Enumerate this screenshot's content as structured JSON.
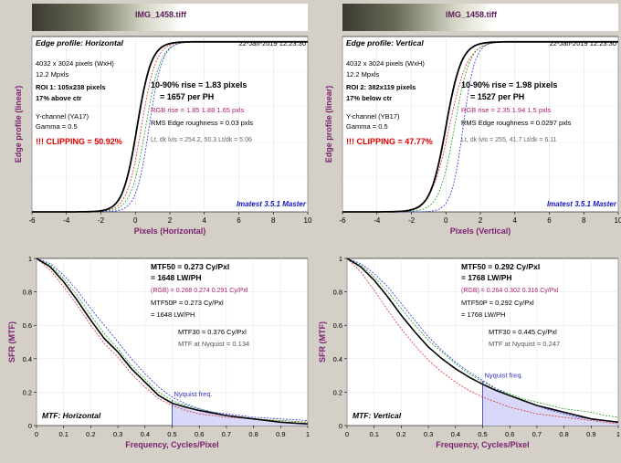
{
  "colors": {
    "background": "#d4d0c8",
    "plot_bg": "#ffffff",
    "curve_main": "#000000",
    "curve_red": "#e03030",
    "curve_green": "#20a020",
    "curve_blue": "#3030e0",
    "axis_label": "#7a1f6e",
    "clipping": "#e00000",
    "imatest": "#1515c0",
    "rgb_text": "#b0206a",
    "nyquist_fill": "#d8d8f8",
    "nyquist_line": "#3030c0"
  },
  "chart_data": [
    {
      "type": "line",
      "file_title": "IMG_1458.tiff",
      "title": "Edge profile: Horizontal",
      "timestamp": "22-Jan-2019 12:23:30",
      "xlabel": "Pixels (Horizontal)",
      "ylabel": "Edge profile (linear)",
      "xlim": [
        -6,
        10
      ],
      "ylim": [
        0,
        1
      ],
      "x_ticks": [
        "-6",
        "-4",
        "-2",
        "0",
        "2",
        "4",
        "6",
        "8",
        "10"
      ],
      "info_left": [
        "4032 x 3024 pixels (WxH)",
        "12.2 Mpxls",
        "ROI 1:  105x238 pixels",
        "17% above ctr",
        "Y-channel  (YA17)",
        "Gamma = 0.5",
        "!!! CLIPPING =  50.92%"
      ],
      "info_main": [
        "10-90% rise = 1.83 pixels",
        "= 1657 per PH"
      ],
      "info_rgb": "RGB rise = 1.85  1.88  1.65 pxls",
      "info_extra": [
        "RMS Edge roughness = 0.03 pxls",
        "Lt, dk lvls = 254.2, 50.3    Lt/dk = 5.06"
      ],
      "brand": "Imatest 3.5.1 Master",
      "edge": {
        "main": {
          "center": 0.1,
          "rise": 1.83
        },
        "red": {
          "center": 0.35,
          "rise": 1.85
        },
        "green": {
          "center": 0.6,
          "rise": 1.88
        },
        "blue": {
          "center": 0.8,
          "rise": 1.65
        }
      }
    },
    {
      "type": "line",
      "file_title": "IMG_1458.tiff",
      "title": "Edge profile: Vertical",
      "timestamp": "22-Jan-2019 12:23:30",
      "xlabel": "Pixels (Vertical)",
      "ylabel": "Edge profile (linear)",
      "xlim": [
        -6,
        10
      ],
      "ylim": [
        0,
        1
      ],
      "x_ticks": [
        "-6",
        "-4",
        "-2",
        "0",
        "2",
        "4",
        "6",
        "8",
        "10"
      ],
      "info_left": [
        "4032 x 3024 pixels (WxH)",
        "12.2 Mpxls",
        "ROI 2:  382x119 pixels",
        "17% below ctr",
        "Y-channel  (YB17)",
        "Gamma = 0.5",
        "!!! CLIPPING =  47.77%"
      ],
      "info_main": [
        "10-90% rise = 1.98 pixels",
        "= 1527 per PH"
      ],
      "info_rgb": "RGB rise = 2.35  1.94  1.5 pxls",
      "info_extra": [
        "RMS Edge roughness = 0.0297 pxls",
        "Lt, dk lvls = 255, 41.7    Lt/dk = 6.11"
      ],
      "brand": "Imatest 3.5.1 Master",
      "edge": {
        "main": {
          "center": 0.0,
          "rise": 1.98
        },
        "red": {
          "center": 0.2,
          "rise": 2.35
        },
        "green": {
          "center": 0.5,
          "rise": 1.94
        },
        "blue": {
          "center": 1.0,
          "rise": 1.5
        }
      }
    },
    {
      "type": "line",
      "title": "MTF: Horizontal",
      "xlabel": "Frequency, Cycles/Pixel",
      "ylabel": "SFR (MTF)",
      "xlim": [
        0,
        1
      ],
      "ylim": [
        0,
        1
      ],
      "x_ticks": [
        "0",
        "0.1",
        "0.2",
        "0.3",
        "0.4",
        "0.5",
        "0.6",
        "0.7",
        "0.8",
        "0.9",
        "1"
      ],
      "y_ticks": [
        "0",
        "0.2",
        "0.4",
        "0.6",
        "0.8",
        "1"
      ],
      "info": [
        "MTF50 = 0.273 Cy/Pxl",
        "= 1648 LW/PH"
      ],
      "info_rgb": "(RGB) = 0.268  0.274  0.291 Cy/Pxl",
      "info_extra": [
        "MTF50P = 0.273 Cy/Pxl",
        "= 1648 LW/PH"
      ],
      "info_extra2": [
        "MTF30 = 0.376 Cy/Pxl",
        "MTF at Nyquist = 0.134"
      ],
      "nyquist_label": "Nyquist freq.",
      "nyquist": 0.5,
      "series": [
        {
          "x": [
            0,
            0.05,
            0.1,
            0.15,
            0.2,
            0.25,
            0.3,
            0.35,
            0.4,
            0.45,
            0.5,
            0.55,
            0.6,
            0.65,
            0.7,
            0.75,
            0.8,
            0.85,
            0.9,
            0.95,
            1.0
          ],
          "values": [
            1.0,
            0.95,
            0.86,
            0.75,
            0.63,
            0.52,
            0.44,
            0.34,
            0.26,
            0.18,
            0.134,
            0.11,
            0.09,
            0.075,
            0.06,
            0.05,
            0.04,
            0.03,
            0.02,
            0.015,
            0.01
          ]
        },
        {
          "x": [
            0,
            0.05,
            0.1,
            0.15,
            0.2,
            0.25,
            0.3,
            0.35,
            0.4,
            0.45,
            0.5,
            0.55,
            0.6,
            0.65,
            0.7,
            0.75,
            0.8,
            0.85,
            0.9,
            0.95,
            1.0
          ],
          "values": [
            1.0,
            0.93,
            0.83,
            0.72,
            0.6,
            0.49,
            0.41,
            0.31,
            0.23,
            0.16,
            0.12,
            0.09,
            0.07,
            0.06,
            0.05,
            0.045,
            0.04,
            0.035,
            0.03,
            0.025,
            0.02
          ]
        },
        {
          "x": [
            0,
            0.05,
            0.1,
            0.15,
            0.2,
            0.25,
            0.3,
            0.35,
            0.4,
            0.45,
            0.5,
            0.55,
            0.6,
            0.65,
            0.7,
            0.75,
            0.8,
            0.85,
            0.9,
            0.95,
            1.0
          ],
          "values": [
            1.0,
            0.96,
            0.88,
            0.78,
            0.66,
            0.55,
            0.46,
            0.36,
            0.28,
            0.2,
            0.15,
            0.12,
            0.1,
            0.08,
            0.06,
            0.05,
            0.04,
            0.035,
            0.03,
            0.025,
            0.02
          ]
        },
        {
          "x": [
            0,
            0.05,
            0.1,
            0.15,
            0.2,
            0.25,
            0.3,
            0.35,
            0.4,
            0.45,
            0.5,
            0.55,
            0.6,
            0.65,
            0.7,
            0.75,
            0.8,
            0.85,
            0.9,
            0.95,
            1.0
          ],
          "values": [
            1.0,
            0.97,
            0.9,
            0.81,
            0.7,
            0.6,
            0.5,
            0.4,
            0.31,
            0.23,
            0.17,
            0.13,
            0.1,
            0.08,
            0.07,
            0.06,
            0.05,
            0.045,
            0.04,
            0.035,
            0.03
          ]
        }
      ]
    },
    {
      "type": "line",
      "title": "MTF: Vertical",
      "xlabel": "Frequency, Cycles/Pixel",
      "ylabel": "SFR (MTF)",
      "xlim": [
        0,
        1
      ],
      "ylim": [
        0,
        1
      ],
      "x_ticks": [
        "0",
        "0.1",
        "0.2",
        "0.3",
        "0.4",
        "0.5",
        "0.6",
        "0.7",
        "0.8",
        "0.9",
        "1"
      ],
      "y_ticks": [
        "0",
        "0.2",
        "0.4",
        "0.6",
        "0.8",
        "1"
      ],
      "info": [
        "MTF50 = 0.292 Cy/Pxl",
        "= 1768 LW/PH"
      ],
      "info_rgb": "(RGB) = 0.264  0.302  0.316 Cy/Pxl",
      "info_extra": [
        "MTF50P = 0.292 Cy/Pxl",
        "= 1768 LW/PH"
      ],
      "info_extra2": [
        "MTF30 = 0.445 Cy/Pxl",
        "MTF at Nyquist = 0.247"
      ],
      "nyquist_label": "Nyquist freq.",
      "nyquist": 0.5,
      "series": [
        {
          "x": [
            0,
            0.05,
            0.1,
            0.15,
            0.2,
            0.25,
            0.3,
            0.35,
            0.4,
            0.45,
            0.5,
            0.55,
            0.6,
            0.65,
            0.7,
            0.75,
            0.8,
            0.85,
            0.9,
            0.95,
            1.0
          ],
          "values": [
            1.0,
            0.95,
            0.87,
            0.77,
            0.66,
            0.56,
            0.47,
            0.4,
            0.34,
            0.29,
            0.247,
            0.21,
            0.18,
            0.15,
            0.12,
            0.1,
            0.08,
            0.06,
            0.04,
            0.03,
            0.02
          ]
        },
        {
          "x": [
            0,
            0.05,
            0.1,
            0.15,
            0.2,
            0.25,
            0.3,
            0.35,
            0.4,
            0.45,
            0.5,
            0.55,
            0.6,
            0.65,
            0.7,
            0.75,
            0.8,
            0.85,
            0.9,
            0.95,
            1.0
          ],
          "values": [
            1.0,
            0.92,
            0.81,
            0.69,
            0.58,
            0.48,
            0.39,
            0.32,
            0.26,
            0.21,
            0.17,
            0.14,
            0.11,
            0.09,
            0.07,
            0.06,
            0.05,
            0.04,
            0.03,
            0.02,
            0.01
          ]
        },
        {
          "x": [
            0,
            0.05,
            0.1,
            0.15,
            0.2,
            0.25,
            0.3,
            0.35,
            0.4,
            0.45,
            0.5,
            0.55,
            0.6,
            0.65,
            0.7,
            0.75,
            0.8,
            0.85,
            0.9,
            0.95,
            1.0
          ],
          "values": [
            1.0,
            0.96,
            0.89,
            0.8,
            0.7,
            0.6,
            0.51,
            0.44,
            0.37,
            0.31,
            0.26,
            0.22,
            0.19,
            0.16,
            0.14,
            0.12,
            0.1,
            0.09,
            0.08,
            0.06,
            0.05
          ]
        },
        {
          "x": [
            0,
            0.05,
            0.1,
            0.15,
            0.2,
            0.25,
            0.3,
            0.35,
            0.4,
            0.45,
            0.5,
            0.55,
            0.6,
            0.65,
            0.7,
            0.75,
            0.8,
            0.85,
            0.9,
            0.95,
            1.0
          ],
          "values": [
            1.0,
            0.97,
            0.91,
            0.83,
            0.73,
            0.63,
            0.53,
            0.45,
            0.38,
            0.32,
            0.27,
            0.22,
            0.18,
            0.15,
            0.12,
            0.09,
            0.07,
            0.05,
            0.04,
            0.03,
            0.02
          ]
        }
      ]
    }
  ]
}
